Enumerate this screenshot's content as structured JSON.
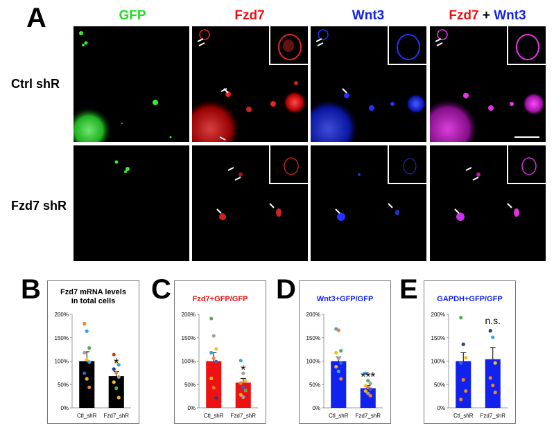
{
  "panel_a": {
    "letter": "A",
    "columns": {
      "gfp": "GFP",
      "fzd7": "Fzd7",
      "wnt3": "Wnt3",
      "merge_fzd7": "Fzd7",
      "merge_plus": " + ",
      "merge_wnt3": "Wnt3"
    },
    "rows": {
      "ctrl": "Ctrl shR",
      "fzd7": "Fzd7 shR"
    },
    "colors": {
      "gfp": "#22dd22",
      "fzd7": "#ee1111",
      "wnt3": "#1122ee",
      "merge": "#dd22cc"
    }
  },
  "chart_data": [
    {
      "panel": "B",
      "type": "bar",
      "title_line1": "Fzd7 mRNA levels",
      "title_line2": "in total cells",
      "title_color": "#000000",
      "bar_color": "#000000",
      "categories": [
        "Ctl_shR",
        "Fzd7_shR"
      ],
      "values": [
        100,
        68
      ],
      "errors": [
        20,
        10
      ],
      "ylim": [
        0,
        200
      ],
      "yticks": [
        "0%",
        "50%",
        "100%",
        "150%",
        "200%"
      ],
      "significance": "*",
      "points": [
        [
          {
            "y": 180,
            "c": "#f08030"
          },
          {
            "y": 164,
            "c": "#30a0e0"
          },
          {
            "y": 128,
            "c": "#50b050"
          },
          {
            "y": 118,
            "c": "#a0a0a0"
          },
          {
            "y": 103,
            "c": "#f0c020"
          },
          {
            "y": 98,
            "c": "#40a0e0"
          },
          {
            "y": 74,
            "c": "#4060c0"
          },
          {
            "y": 62,
            "c": "#f0b020"
          },
          {
            "y": 44,
            "c": "#f08030"
          }
        ],
        [
          {
            "y": 114,
            "c": "#c04010"
          },
          {
            "y": 98,
            "c": "#f0c020"
          },
          {
            "y": 92,
            "c": "#40a0e0"
          },
          {
            "y": 83,
            "c": "#204080"
          },
          {
            "y": 75,
            "c": "#f08030"
          },
          {
            "y": 66,
            "c": "#a0a0a0"
          },
          {
            "y": 55,
            "c": "#f0c020"
          },
          {
            "y": 42,
            "c": "#50b050"
          },
          {
            "y": 22,
            "c": "#f0b020"
          }
        ]
      ]
    },
    {
      "panel": "C",
      "type": "bar",
      "title_line1": "Fzd7+GFP/GFP",
      "title_line2": "",
      "title_color": "#ee1111",
      "bar_color": "#ee1111",
      "categories": [
        "Ctl_shR",
        "Fzd7_shR"
      ],
      "values": [
        100,
        54
      ],
      "errors": [
        18,
        9
      ],
      "ylim": [
        0,
        200
      ],
      "yticks": [
        "0%",
        "50%",
        "100%",
        "150%",
        "200%"
      ],
      "significance": "*",
      "points": [
        [
          {
            "y": 191,
            "c": "#50b050"
          },
          {
            "y": 154,
            "c": "#a0a0a0"
          },
          {
            "y": 126,
            "c": "#f0c020"
          },
          {
            "y": 118,
            "c": "#40a0e0"
          },
          {
            "y": 106,
            "c": "#f08030"
          },
          {
            "y": 99,
            "c": "#4060c0"
          },
          {
            "y": 63,
            "c": "#f0c020"
          },
          {
            "y": 43,
            "c": "#f08030"
          },
          {
            "y": 21,
            "c": "#204080"
          }
        ],
        [
          {
            "y": 101,
            "c": "#40a0e0"
          },
          {
            "y": 74,
            "c": "#a0a0a0"
          },
          {
            "y": 58,
            "c": "#f0c020"
          },
          {
            "y": 53,
            "c": "#f08030"
          },
          {
            "y": 44,
            "c": "#4060c0"
          },
          {
            "y": 37,
            "c": "#50b050"
          },
          {
            "y": 28,
            "c": "#f0b020"
          },
          {
            "y": 23,
            "c": "#a0a0a0"
          }
        ]
      ]
    },
    {
      "panel": "D",
      "type": "bar",
      "title_line1": "Wnt3+GFP/GFP",
      "title_line2": "",
      "title_color": "#1122ee",
      "bar_color": "#1122ee",
      "categories": [
        "Ctl_shR",
        "Fzd7_shR"
      ],
      "values": [
        100,
        42
      ],
      "errors": [
        9,
        6
      ],
      "ylim": [
        0,
        200
      ],
      "yticks": [
        "0%",
        "50%",
        "100%",
        "150%",
        "200%"
      ],
      "significance": "***",
      "points": [
        [
          {
            "y": 169,
            "c": "#40a0e0"
          },
          {
            "y": 166,
            "c": "#f08030"
          },
          {
            "y": 122,
            "c": "#50b050"
          },
          {
            "y": 118,
            "c": "#f0c020"
          },
          {
            "y": 106,
            "c": "#a0a0a0"
          },
          {
            "y": 96,
            "c": "#4060c0"
          },
          {
            "y": 88,
            "c": "#f0b020"
          },
          {
            "y": 78,
            "c": "#40a0e0"
          },
          {
            "y": 62,
            "c": "#f08030"
          }
        ],
        [
          {
            "y": 74,
            "c": "#40a0e0"
          },
          {
            "y": 58,
            "c": "#50b050"
          },
          {
            "y": 52,
            "c": "#a0a0a0"
          },
          {
            "y": 47,
            "c": "#f0c020"
          },
          {
            "y": 44,
            "c": "#f08030"
          },
          {
            "y": 40,
            "c": "#4060c0"
          },
          {
            "y": 36,
            "c": "#f0b020"
          },
          {
            "y": 31,
            "c": "#a0a0a0"
          },
          {
            "y": 26,
            "c": "#f08030"
          }
        ]
      ]
    },
    {
      "panel": "E",
      "type": "bar",
      "title_line1": "GAPDH+GFP/GFP",
      "title_line2": "",
      "title_color": "#1122ee",
      "bar_color": "#1122ee",
      "categories": [
        "Ctl_shR",
        "Fzd7_shR"
      ],
      "values": [
        100,
        104
      ],
      "errors": [
        18,
        25
      ],
      "ylim": [
        0,
        200
      ],
      "yticks": [
        "0%",
        "50%",
        "100%",
        "150%",
        "200%"
      ],
      "significance": "n.s.",
      "points": [
        [
          {
            "y": 193,
            "c": "#50b050"
          },
          {
            "y": 136,
            "c": "#204080"
          },
          {
            "y": 107,
            "c": "#f0c020"
          },
          {
            "y": 96,
            "c": "#4060c0"
          },
          {
            "y": 60,
            "c": "#f08030"
          },
          {
            "y": 36,
            "c": "#f08030"
          },
          {
            "y": 18,
            "c": "#f08030"
          }
        ],
        [
          {
            "y": 165,
            "c": "#204080"
          },
          {
            "y": 151,
            "c": "#40a0e0"
          },
          {
            "y": 96,
            "c": "#f0c020"
          },
          {
            "y": 64,
            "c": "#f08030"
          },
          {
            "y": 48,
            "c": "#f08030"
          },
          {
            "y": 33,
            "c": "#f08030"
          }
        ]
      ]
    }
  ]
}
